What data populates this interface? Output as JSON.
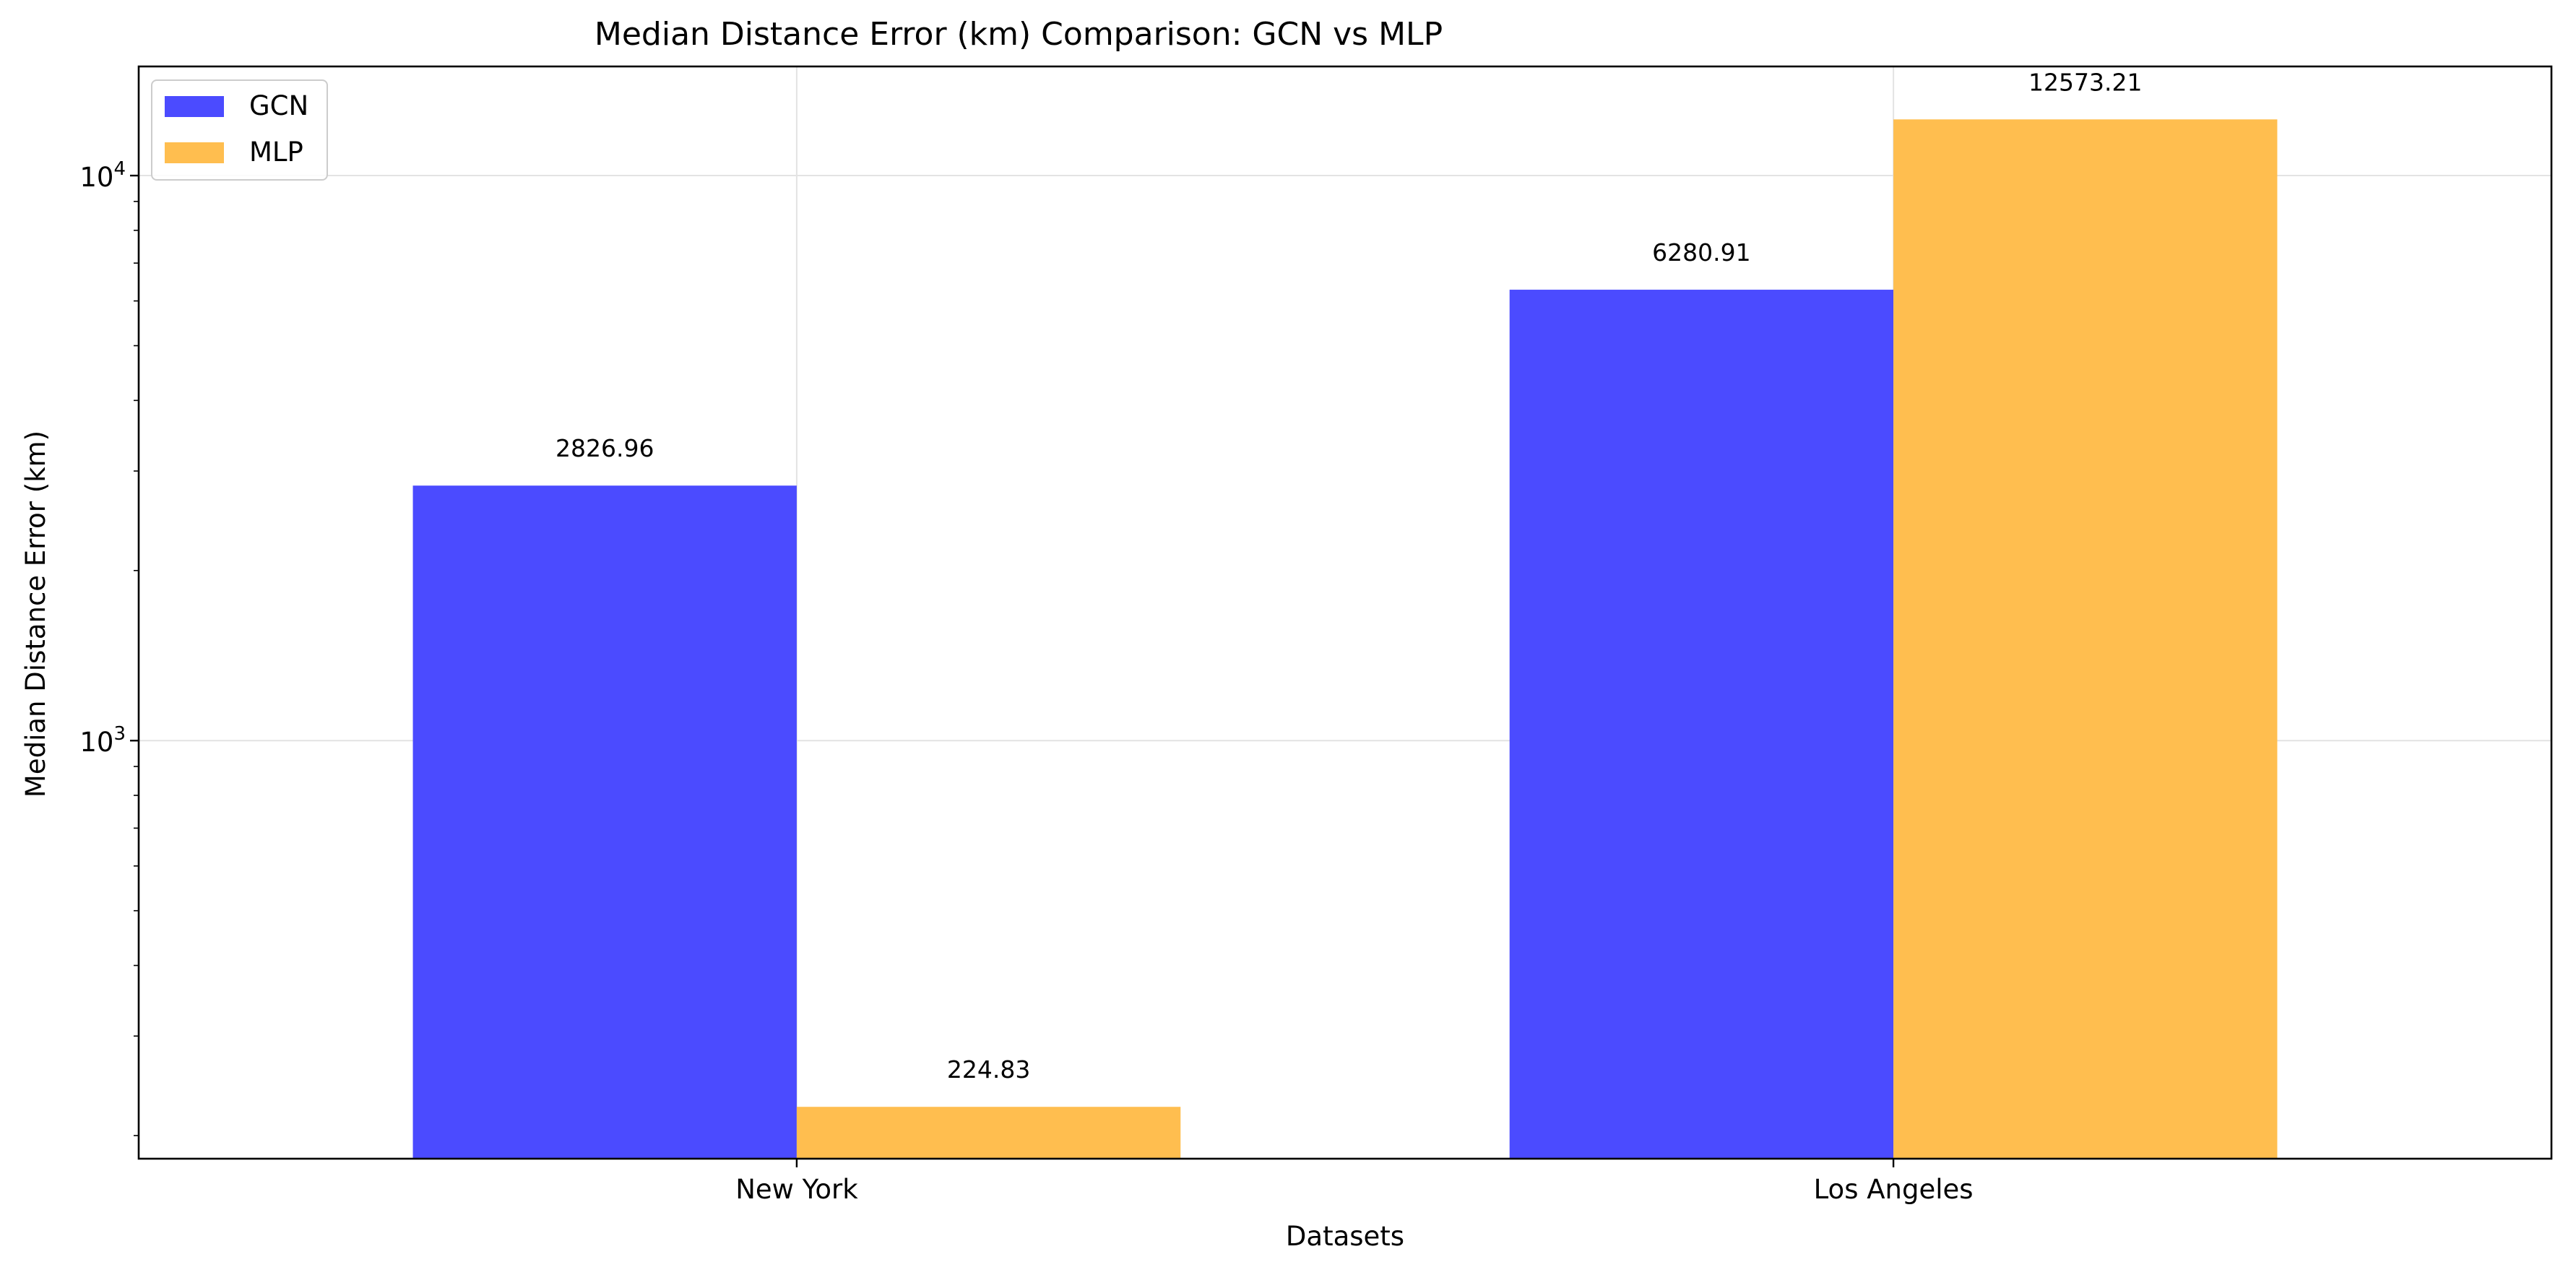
{
  "chart_data": {
    "type": "bar",
    "title": "Median Distance Error (km) Comparison: GCN vs MLP",
    "xlabel": "Datasets",
    "ylabel": "Median Distance Error (km)",
    "categories": [
      "New York",
      "Los Angeles"
    ],
    "series": [
      {
        "name": "GCN",
        "color": "#4b4bff",
        "values": [
          2826.96,
          6280.91
        ],
        "labels": [
          "2826.96",
          "6280.91"
        ]
      },
      {
        "name": "MLP",
        "color": "#ffbe4f",
        "values": [
          224.83,
          12573.21
        ],
        "labels": [
          "224.83",
          "12573.21"
        ]
      }
    ],
    "yscale": "log",
    "ylim": [
      182,
      15600
    ],
    "yticks": [
      {
        "value": 1000,
        "base": "10",
        "exp": "3"
      },
      {
        "value": 10000,
        "base": "10",
        "exp": "4"
      }
    ],
    "grid": true,
    "legend_position": "top-left"
  }
}
